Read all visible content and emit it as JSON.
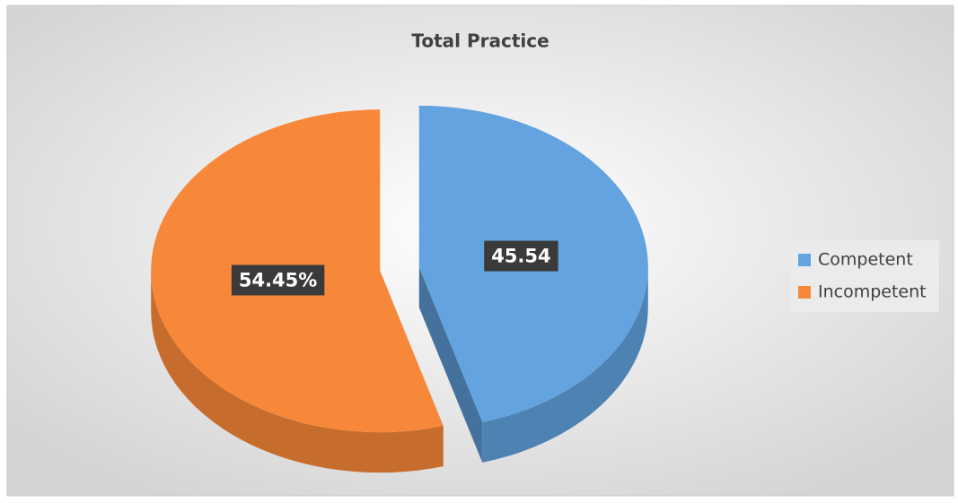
{
  "chart_data": {
    "type": "pie",
    "title": "Total Practice",
    "categories": [
      "Competent",
      "Incompetent"
    ],
    "values": [
      45.54,
      54.45
    ],
    "value_labels": [
      "45.54",
      "54.45%"
    ],
    "colors": [
      "#62a3e0",
      "#f7883a"
    ],
    "legend": "right"
  }
}
